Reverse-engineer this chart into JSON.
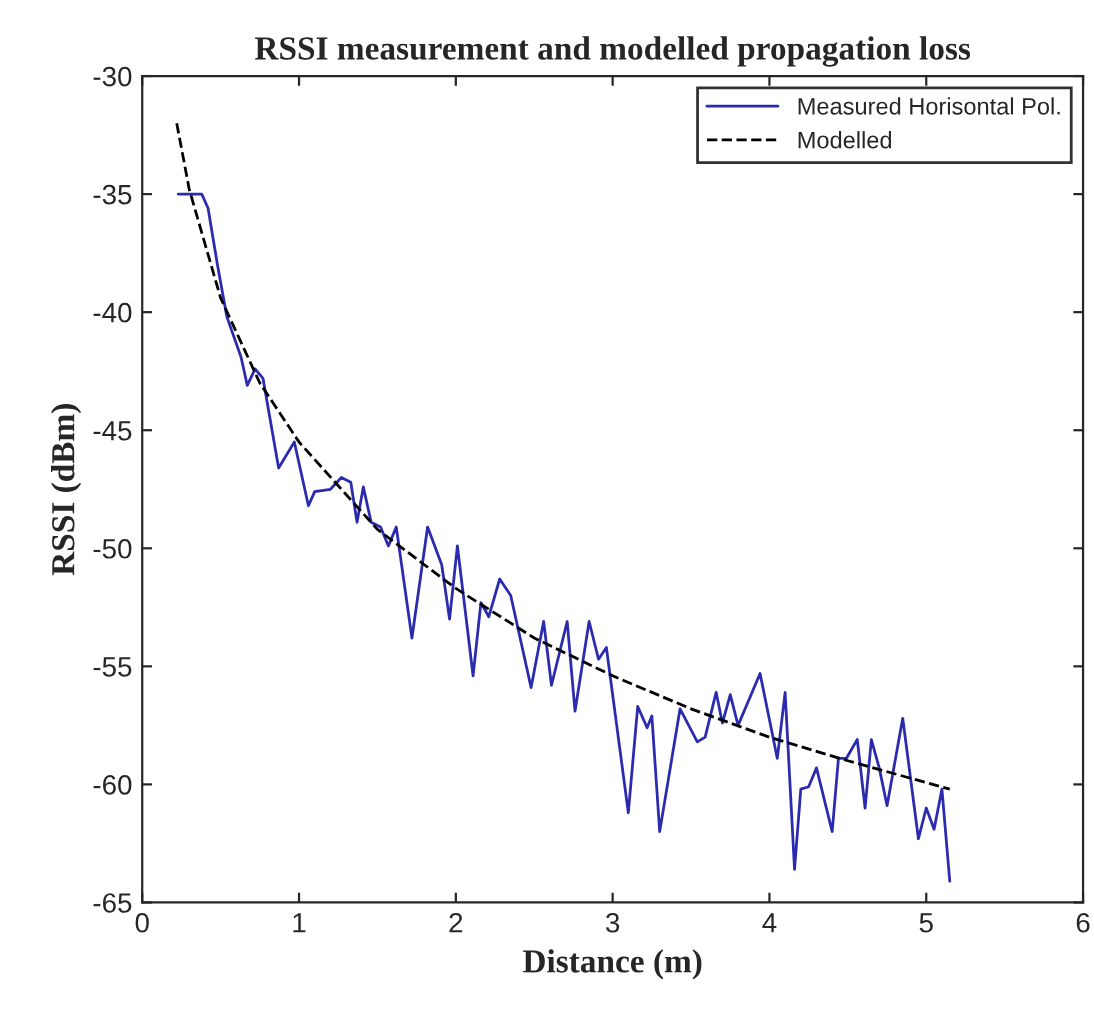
{
  "chart_data": {
    "type": "line",
    "title": "RSSI measurement and modelled propagation loss",
    "xlabel": "Distance (m)",
    "ylabel": "RSSI (dBm)",
    "xlim": [
      0,
      6
    ],
    "ylim": [
      -65,
      -30
    ],
    "xticks": [
      0,
      1,
      2,
      3,
      4,
      5,
      6
    ],
    "yticks": [
      -65,
      -60,
      -55,
      -50,
      -45,
      -40,
      -35,
      -30
    ],
    "grid": false,
    "legend": "top right",
    "series": [
      {
        "name": "Measured Horisontal Pol.",
        "color": "#2b2bb0",
        "line_style": "solid",
        "x": [
          0.23,
          0.38,
          0.42,
          0.48,
          0.54,
          0.63,
          0.67,
          0.72,
          0.77,
          0.87,
          0.97,
          1.06,
          1.1,
          1.2,
          1.27,
          1.33,
          1.37,
          1.41,
          1.46,
          1.52,
          1.57,
          1.62,
          1.72,
          1.82,
          1.91,
          1.96,
          2.01,
          2.11,
          2.16,
          2.21,
          2.28,
          2.35,
          2.48,
          2.56,
          2.61,
          2.71,
          2.76,
          2.85,
          2.91,
          2.96,
          3.1,
          3.16,
          3.22,
          3.25,
          3.3,
          3.43,
          3.54,
          3.59,
          3.66,
          3.7,
          3.75,
          3.8,
          3.94,
          4.05,
          4.1,
          4.16,
          4.2,
          4.25,
          4.3,
          4.4,
          4.44,
          4.49,
          4.56,
          4.61,
          4.65,
          4.7,
          4.75,
          4.85,
          4.95,
          5.0,
          5.05,
          5.1,
          5.15
        ],
        "values": [
          -35.0,
          -35.0,
          -35.6,
          -38.0,
          -40.2,
          -41.9,
          -43.1,
          -42.4,
          -42.8,
          -46.6,
          -45.5,
          -48.2,
          -47.6,
          -47.5,
          -47.0,
          -47.2,
          -48.9,
          -47.4,
          -48.9,
          -49.1,
          -49.9,
          -49.1,
          -53.8,
          -49.1,
          -50.7,
          -53.0,
          -49.9,
          -55.4,
          -52.3,
          -52.9,
          -51.3,
          -52.0,
          -55.9,
          -53.1,
          -55.8,
          -53.1,
          -56.9,
          -53.1,
          -54.7,
          -54.2,
          -61.2,
          -56.7,
          -57.6,
          -57.1,
          -62.0,
          -56.8,
          -58.2,
          -58.0,
          -56.1,
          -57.4,
          -56.2,
          -57.5,
          -55.3,
          -58.9,
          -56.1,
          -63.6,
          -60.2,
          -60.1,
          -59.3,
          -62.0,
          -58.9,
          -58.9,
          -58.1,
          -61.0,
          -58.1,
          -59.3,
          -60.9,
          -57.2,
          -62.3,
          -61.0,
          -61.9,
          -60.2,
          -64.1
        ]
      },
      {
        "name": "Modelled",
        "color": "#000000",
        "line_style": "dashed",
        "x": [
          0.22,
          0.3,
          0.5,
          0.75,
          1.0,
          1.5,
          2.0,
          2.5,
          3.0,
          3.5,
          4.0,
          4.5,
          5.15
        ],
        "values": [
          -32.0,
          -34.8,
          -39.4,
          -43.0,
          -45.5,
          -49.2,
          -51.7,
          -53.8,
          -55.4,
          -56.8,
          -58.0,
          -59.0,
          -60.2
        ]
      }
    ]
  }
}
